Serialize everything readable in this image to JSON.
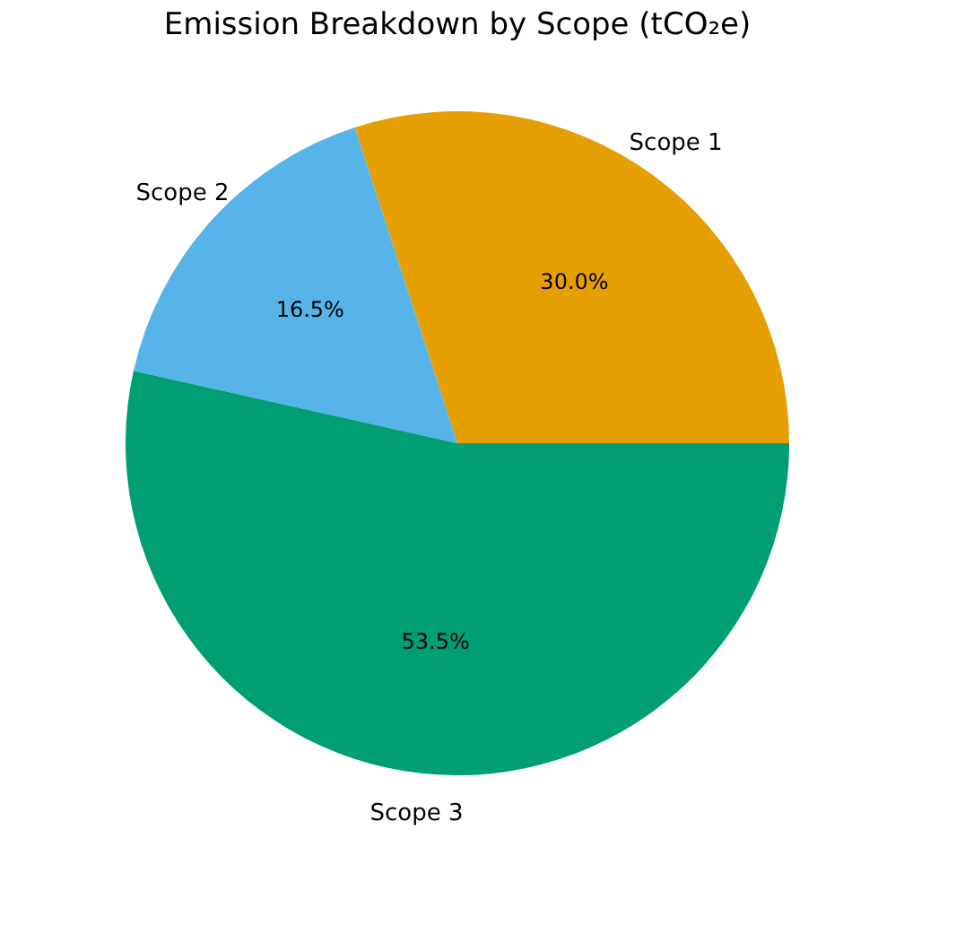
{
  "chart_data": {
    "type": "pie",
    "title": "Emission Breakdown by Scope (tCO₂e)",
    "categories": [
      "Scope 1",
      "Scope 2",
      "Scope 3"
    ],
    "values": [
      30.0,
      16.5,
      53.5
    ],
    "colors": [
      "#e69f00",
      "#56b4e9",
      "#009e73"
    ],
    "value_labels": [
      "30.0%",
      "16.5%",
      "53.5%"
    ],
    "legend": false
  }
}
